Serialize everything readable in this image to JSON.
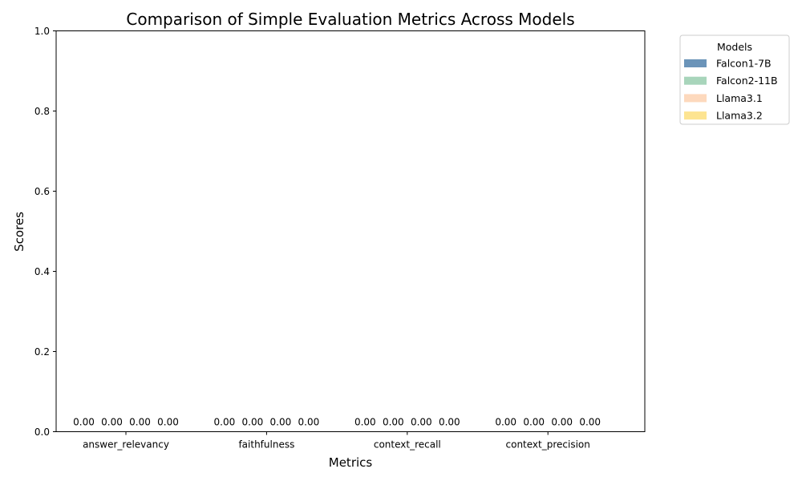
{
  "chart_data": {
    "type": "bar",
    "title": "Comparison of Simple Evaluation Metrics Across Models",
    "xlabel": "Metrics",
    "ylabel": "Scores",
    "ylim": [
      0,
      1
    ],
    "yticks": [
      "0.0",
      "0.2",
      "0.4",
      "0.6",
      "0.8",
      "1.0"
    ],
    "categories": [
      "answer_relevancy",
      "faithfulness",
      "context_recall",
      "context_precision"
    ],
    "legend_title": "Models",
    "legend_position": "outside-right-top",
    "series": [
      {
        "name": "Falcon1-7B",
        "color": "#6b94b9",
        "values": [
          0,
          0,
          0,
          0
        ],
        "labels": [
          "0.00",
          "0.00",
          "0.00",
          "0.00"
        ]
      },
      {
        "name": "Falcon2-11B",
        "color": "#a8d5bb",
        "values": [
          0,
          0,
          0,
          0
        ],
        "labels": [
          "0.00",
          "0.00",
          "0.00",
          "0.00"
        ]
      },
      {
        "name": "Llama3.1",
        "color": "#fdd9bd",
        "values": [
          0,
          0,
          0,
          0
        ],
        "labels": [
          "0.00",
          "0.00",
          "0.00",
          "0.00"
        ]
      },
      {
        "name": "Llama3.2",
        "color": "#fde491",
        "values": [
          0,
          0,
          0,
          0
        ],
        "labels": [
          "0.00",
          "0.00",
          "0.00",
          "0.00"
        ]
      }
    ]
  }
}
